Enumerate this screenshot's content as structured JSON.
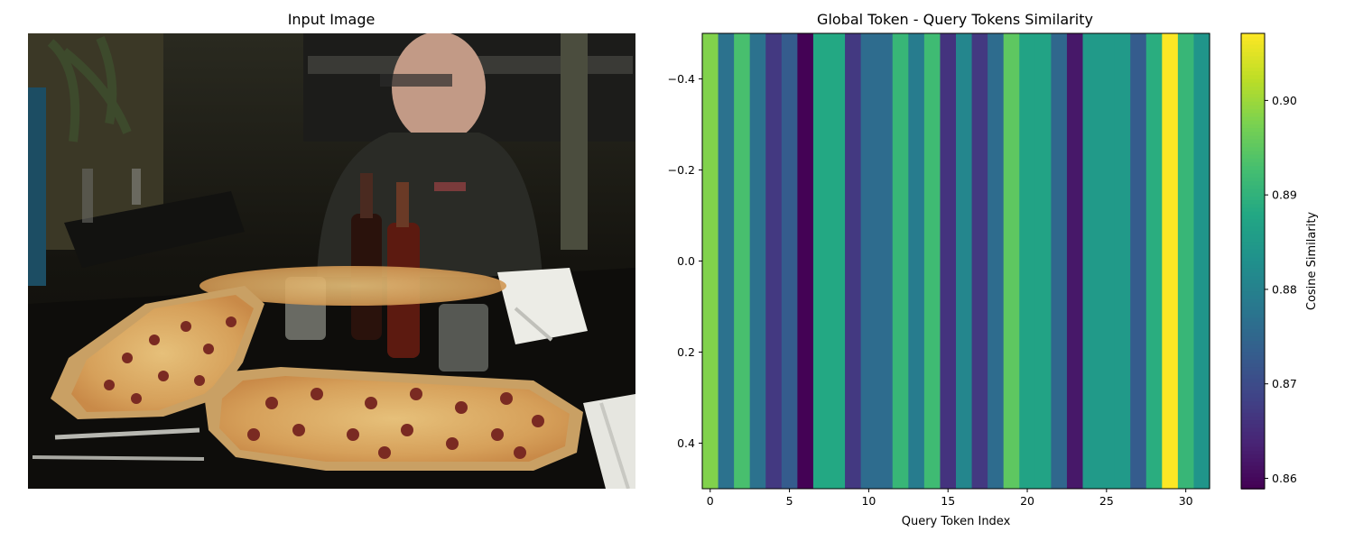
{
  "left_panel": {
    "title": "Input Image",
    "image_description_icon": "pizza-restaurant-photo"
  },
  "chart_data": {
    "type": "heatmap",
    "title": "Global Token - Query Tokens Similarity",
    "xlabel": "Query Token Index",
    "ylabel": "",
    "colorbar_label": "Cosine Similarity",
    "colormap": "viridis",
    "x": [
      0,
      1,
      2,
      3,
      4,
      5,
      6,
      7,
      8,
      9,
      10,
      11,
      12,
      13,
      14,
      15,
      16,
      17,
      18,
      19,
      20,
      21,
      22,
      23,
      24,
      25,
      26,
      27,
      28,
      29,
      30,
      31
    ],
    "values": [
      0.898,
      0.877,
      0.893,
      0.877,
      0.867,
      0.873,
      0.859,
      0.888,
      0.888,
      0.867,
      0.876,
      0.876,
      0.891,
      0.879,
      0.892,
      0.866,
      0.881,
      0.867,
      0.876,
      0.895,
      0.887,
      0.887,
      0.875,
      0.862,
      0.885,
      0.885,
      0.885,
      0.873,
      0.889,
      0.907,
      0.891,
      0.884
    ],
    "xlim": [
      -0.5,
      31.5
    ],
    "ylim": [
      0.5,
      -0.5
    ],
    "xticks": [
      0,
      5,
      10,
      15,
      20,
      25,
      30
    ],
    "yticks": [
      -0.4,
      -0.2,
      0.0,
      0.2,
      0.4
    ],
    "ytick_labels": [
      "−0.4",
      "−0.2",
      "0.0",
      "0.2",
      "0.4"
    ],
    "clim": [
      0.8589,
      0.9071
    ],
    "cbar_ticks": [
      0.86,
      0.87,
      0.88,
      0.89,
      0.9
    ],
    "cbar_tick_labels": [
      "0.86",
      "0.87",
      "0.88",
      "0.89",
      "0.90"
    ]
  }
}
